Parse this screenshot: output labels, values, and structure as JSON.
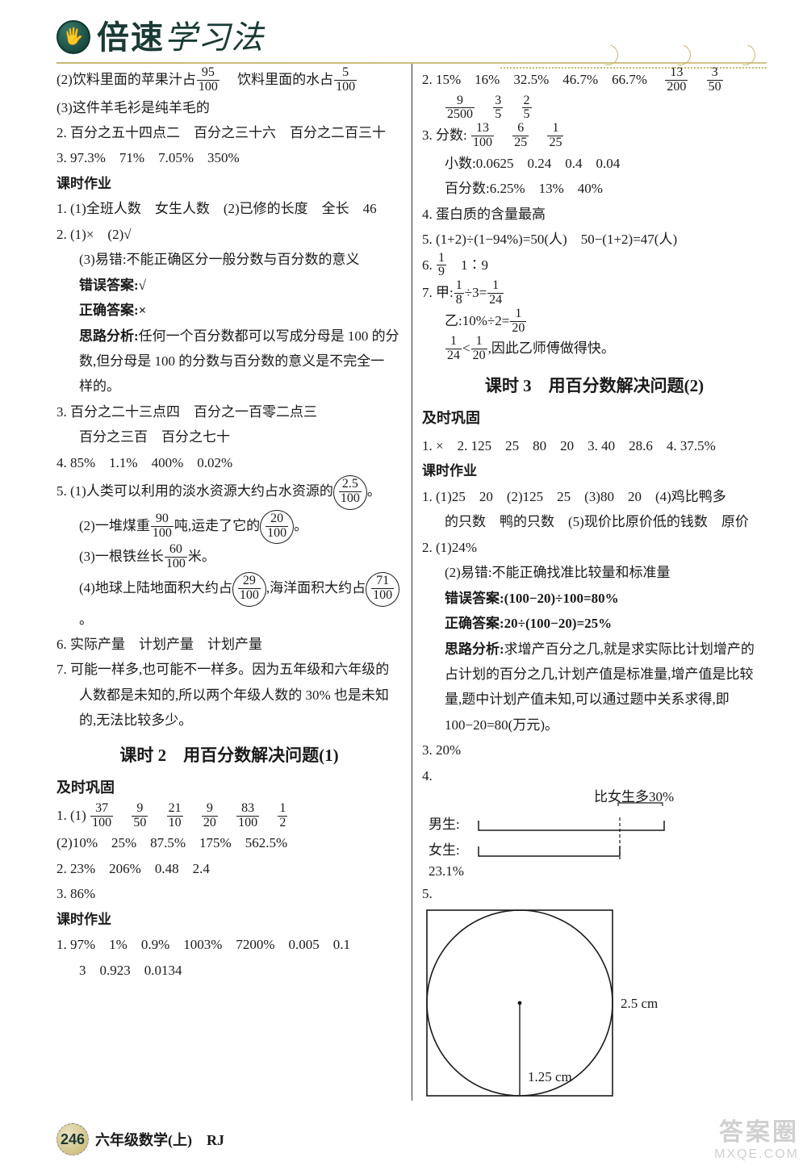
{
  "header": {
    "bold_title": "倍速",
    "light_title": "学习法"
  },
  "left": {
    "l2": "(2)饮料里面的苹果汁占",
    "l2b": "　饮料里面的水占",
    "frac95_100": {
      "n": "95",
      "d": "100"
    },
    "frac5_100": {
      "n": "5",
      "d": "100"
    },
    "l3": "(3)这件羊毛衫是纯羊毛的",
    "l4": "2. 百分之五十四点二　百分之三十六　百分之二百三十",
    "l5": "3. 97.3%　71%　7.05%　350%",
    "hw": "课时作业",
    "l6": "1. (1)全班人数　女生人数　(2)已修的长度　全长　46",
    "l7": "2. (1)×　(2)√",
    "l8": "(3)易错:不能正确区分一般分数与百分数的意义",
    "l9": "错误答案:√",
    "l10": "正确答案:×",
    "l11": "思路分析:任何一个百分数都可以写成分母是 100 的分",
    "l11b": "数,但分母是 100 的分数与百分数的意义是不完全一",
    "l11c": "样的。",
    "l12": "3. 百分之二十三点四　百分之一百零二点三",
    "l12b": "百分之三百　百分之七十",
    "l13": "4. 85%　1.1%　400%　0.02%",
    "l14a": "5. (1)人类可以利用的淡水资源大约占水资源的",
    "frac25_100": {
      "n": "2.5",
      "d": "100"
    },
    "l15a": "(2)一堆煤重",
    "l15b": "吨,运走了它的",
    "frac90_100": {
      "n": "90",
      "d": "100"
    },
    "frac20_100": {
      "n": "20",
      "d": "100"
    },
    "l16a": "(3)一根铁丝长",
    "l16b": "米。",
    "frac60_100": {
      "n": "60",
      "d": "100"
    },
    "l17a": "(4)地球上陆地面积大约占",
    "l17b": ",海洋面积大约占",
    "frac29_100": {
      "n": "29",
      "d": "100"
    },
    "frac71_100": {
      "n": "71",
      "d": "100"
    },
    "l18": "6. 实际产量　计划产量　计划产量",
    "l19": "7. 可能一样多,也可能不一样多。因为五年级和六年级的",
    "l19b": "人数都是未知的,所以两个年级人数的 30% 也是未知",
    "l19c": "的,无法比较多少。",
    "sec2": "课时 2　用百分数解决问题(1)",
    "js": "及时巩固",
    "l20": "1. (1)",
    "frac37_100": {
      "n": "37",
      "d": "100"
    },
    "frac9_50": {
      "n": "9",
      "d": "50"
    },
    "frac21_10": {
      "n": "21",
      "d": "10"
    },
    "frac9_20": {
      "n": "9",
      "d": "20"
    },
    "frac83_100": {
      "n": "83",
      "d": "100"
    },
    "frac1_2": {
      "n": "1",
      "d": "2"
    },
    "l21": "(2)10%　25%　87.5%　175%　562.5%",
    "l22": "2. 23%　206%　0.48　2.4",
    "l23": "3. 86%",
    "l24": "1. 97%　1%　0.9%　1003%　7200%　0.005　0.1",
    "l24b": "3　0.923　0.0134"
  },
  "right": {
    "r1": "2. 15%　16%　32.5%　46.7%　66.7%　",
    "frac13_200": {
      "n": "13",
      "d": "200"
    },
    "frac3_50": {
      "n": "3",
      "d": "50"
    },
    "frac9_2500": {
      "n": "9",
      "d": "2500"
    },
    "frac3_5": {
      "n": "3",
      "d": "5"
    },
    "frac2_5": {
      "n": "2",
      "d": "5"
    },
    "r3": "3. 分数:",
    "frac13_100": {
      "n": "13",
      "d": "100"
    },
    "frac6_25": {
      "n": "6",
      "d": "25"
    },
    "frac1_25": {
      "n": "1",
      "d": "25"
    },
    "r4": "小数:0.0625　0.24　0.4　0.04",
    "r5": "百分数:6.25%　13%　40%",
    "r6": "4. 蛋白质的含量最高",
    "r7": "5. (1+2)÷(1−94%)=50(人)　50−(1+2)=47(人)",
    "r8": "6. ",
    "frac1_9": {
      "n": "1",
      "d": "9"
    },
    "r8b": "　1∶9",
    "r9": "7. 甲:",
    "frac1_8": {
      "n": "1",
      "d": "8"
    },
    "r9b": "÷3=",
    "frac1_24": {
      "n": "1",
      "d": "24"
    },
    "r10": "乙:10%÷2=",
    "frac1_20": {
      "n": "1",
      "d": "20"
    },
    "r11b": "<",
    "r11c": ",因此乙师傅做得快。",
    "sec3": "课时 3　用百分数解决问题(2)",
    "r12": "1. ×　2. 125　25　80　20　3. 40　28.6　4. 37.5%",
    "r13": "1. (1)25　20　(2)125　25　(3)80　20　(4)鸡比鸭多",
    "r13b": "的只数　鸭的只数　(5)现价比原价低的钱数　原价",
    "r14": "2. (1)24%",
    "r15": "(2)易错:不能正确找准比较量和标准量",
    "r16": "错误答案:(100−20)÷100=80%",
    "r17": "正确答案:20÷(100−20)=25%",
    "r18": "思路分析:求增产百分之几,就是求实际比计划增产的",
    "r18b": "占计划的百分之几,计划产值是标准量,增产值是比较",
    "r18c": "量,题中计划产值未知,可以通过题中关系求得,即",
    "r18d": "100−20=80(万元)。",
    "r19": "3. 20%",
    "r20": "4.",
    "diagram4": {
      "label_top": "比女生多30%",
      "boy": "男生:",
      "girl": "女生:",
      "percent": "23.1%",
      "bar_color": "#1a1a1a",
      "boy_bar_width": 230,
      "girl_bar_width": 175,
      "bracket_start": 173,
      "bracket_end": 228
    },
    "r21": "5.",
    "diagram5": {
      "radius_label": "1.25 cm",
      "side_label": "2.5 cm",
      "size": 230,
      "stroke": "#1a1a1a"
    }
  },
  "footer": {
    "page": "246",
    "text": "六年级数学(上)　RJ"
  },
  "watermark": {
    "wm1": "答案圈",
    "wm2": "MXQE.COM"
  }
}
